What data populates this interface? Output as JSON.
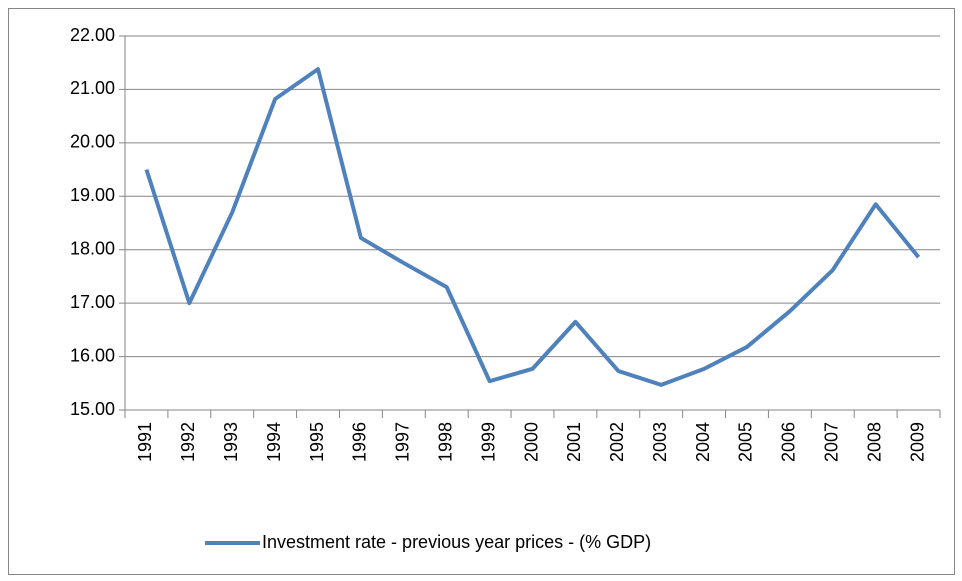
{
  "chart_data": {
    "type": "line",
    "categories": [
      "1991",
      "1992",
      "1993",
      "1994",
      "1995",
      "1996",
      "1997",
      "1998",
      "1999",
      "2000",
      "2001",
      "2002",
      "2003",
      "2004",
      "2005",
      "2006",
      "2007",
      "2008",
      "2009"
    ],
    "series": [
      {
        "name": "Investment rate - previous year prices - (% GDP)",
        "color": "#4f81bd",
        "values": [
          19.5,
          17.0,
          18.7,
          20.82,
          21.38,
          18.22,
          17.75,
          17.3,
          15.54,
          15.77,
          16.65,
          15.73,
          15.47,
          15.77,
          16.18,
          16.85,
          17.62,
          18.85,
          17.86
        ]
      }
    ],
    "ylim": [
      15,
      22
    ],
    "yticks": [
      {
        "value": 15,
        "label": "15.00"
      },
      {
        "value": 16,
        "label": "16.00"
      },
      {
        "value": 17,
        "label": "17.00"
      },
      {
        "value": 18,
        "label": "18.00"
      },
      {
        "value": 19,
        "label": "19.00"
      },
      {
        "value": 20,
        "label": "20.00"
      },
      {
        "value": 21,
        "label": "21.00"
      },
      {
        "value": 22,
        "label": "22.00"
      }
    ],
    "grid": true,
    "legend": "bottom"
  }
}
